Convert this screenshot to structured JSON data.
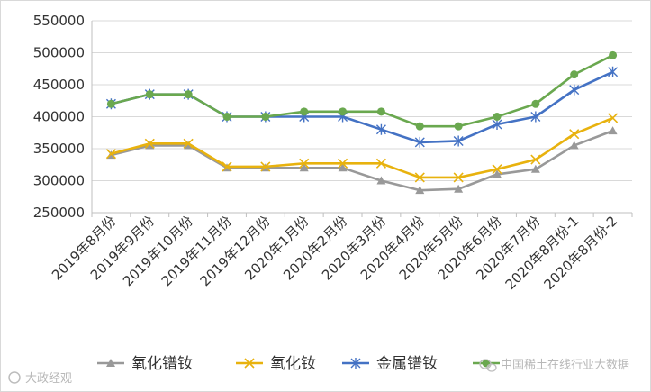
{
  "chart_data": {
    "type": "line",
    "title": "",
    "xlabel": "",
    "ylabel": "",
    "ylim": [
      250000,
      550000
    ],
    "yticks": [
      250000,
      300000,
      350000,
      400000,
      450000,
      500000,
      550000
    ],
    "grid": "horizontal",
    "legend_position": "bottom",
    "categories": [
      "2019年8月份",
      "2019年9月份",
      "2019年10月份",
      "2019年11月份",
      "2019年12月份",
      "2020年1月份",
      "2020年2月份",
      "2020年3月份",
      "2020年4月份",
      "2020年5月份",
      "2020年6月份",
      "2020年7月份",
      "2020年8月份-1",
      "2020年8月份-2"
    ],
    "series": [
      {
        "name": "氧化镨钕",
        "color": "#999999",
        "marker": "triangle",
        "values": [
          340000,
          355000,
          355000,
          320000,
          320000,
          320000,
          320000,
          300000,
          285000,
          287000,
          310000,
          318000,
          355000,
          378000
        ]
      },
      {
        "name": "氧化钕",
        "color": "#e8b20e",
        "marker": "x",
        "values": [
          342000,
          358000,
          358000,
          322000,
          322000,
          327000,
          327000,
          327000,
          305000,
          305000,
          318000,
          333000,
          373000,
          398000
        ]
      },
      {
        "name": "金属镨钕",
        "color": "#4472c4",
        "marker": "star",
        "values": [
          420000,
          435000,
          435000,
          400000,
          400000,
          400000,
          400000,
          380000,
          360000,
          362000,
          388000,
          400000,
          442000,
          470000
        ]
      },
      {
        "name": "",
        "color": "#6aa84f",
        "marker": "circle",
        "values": [
          420000,
          435000,
          435000,
          400000,
          400000,
          408000,
          408000,
          408000,
          385000,
          385000,
          400000,
          420000,
          466000,
          496000
        ]
      }
    ]
  },
  "watermark": {
    "left": "大政经观",
    "right": "中国稀土在线行业大数据"
  }
}
